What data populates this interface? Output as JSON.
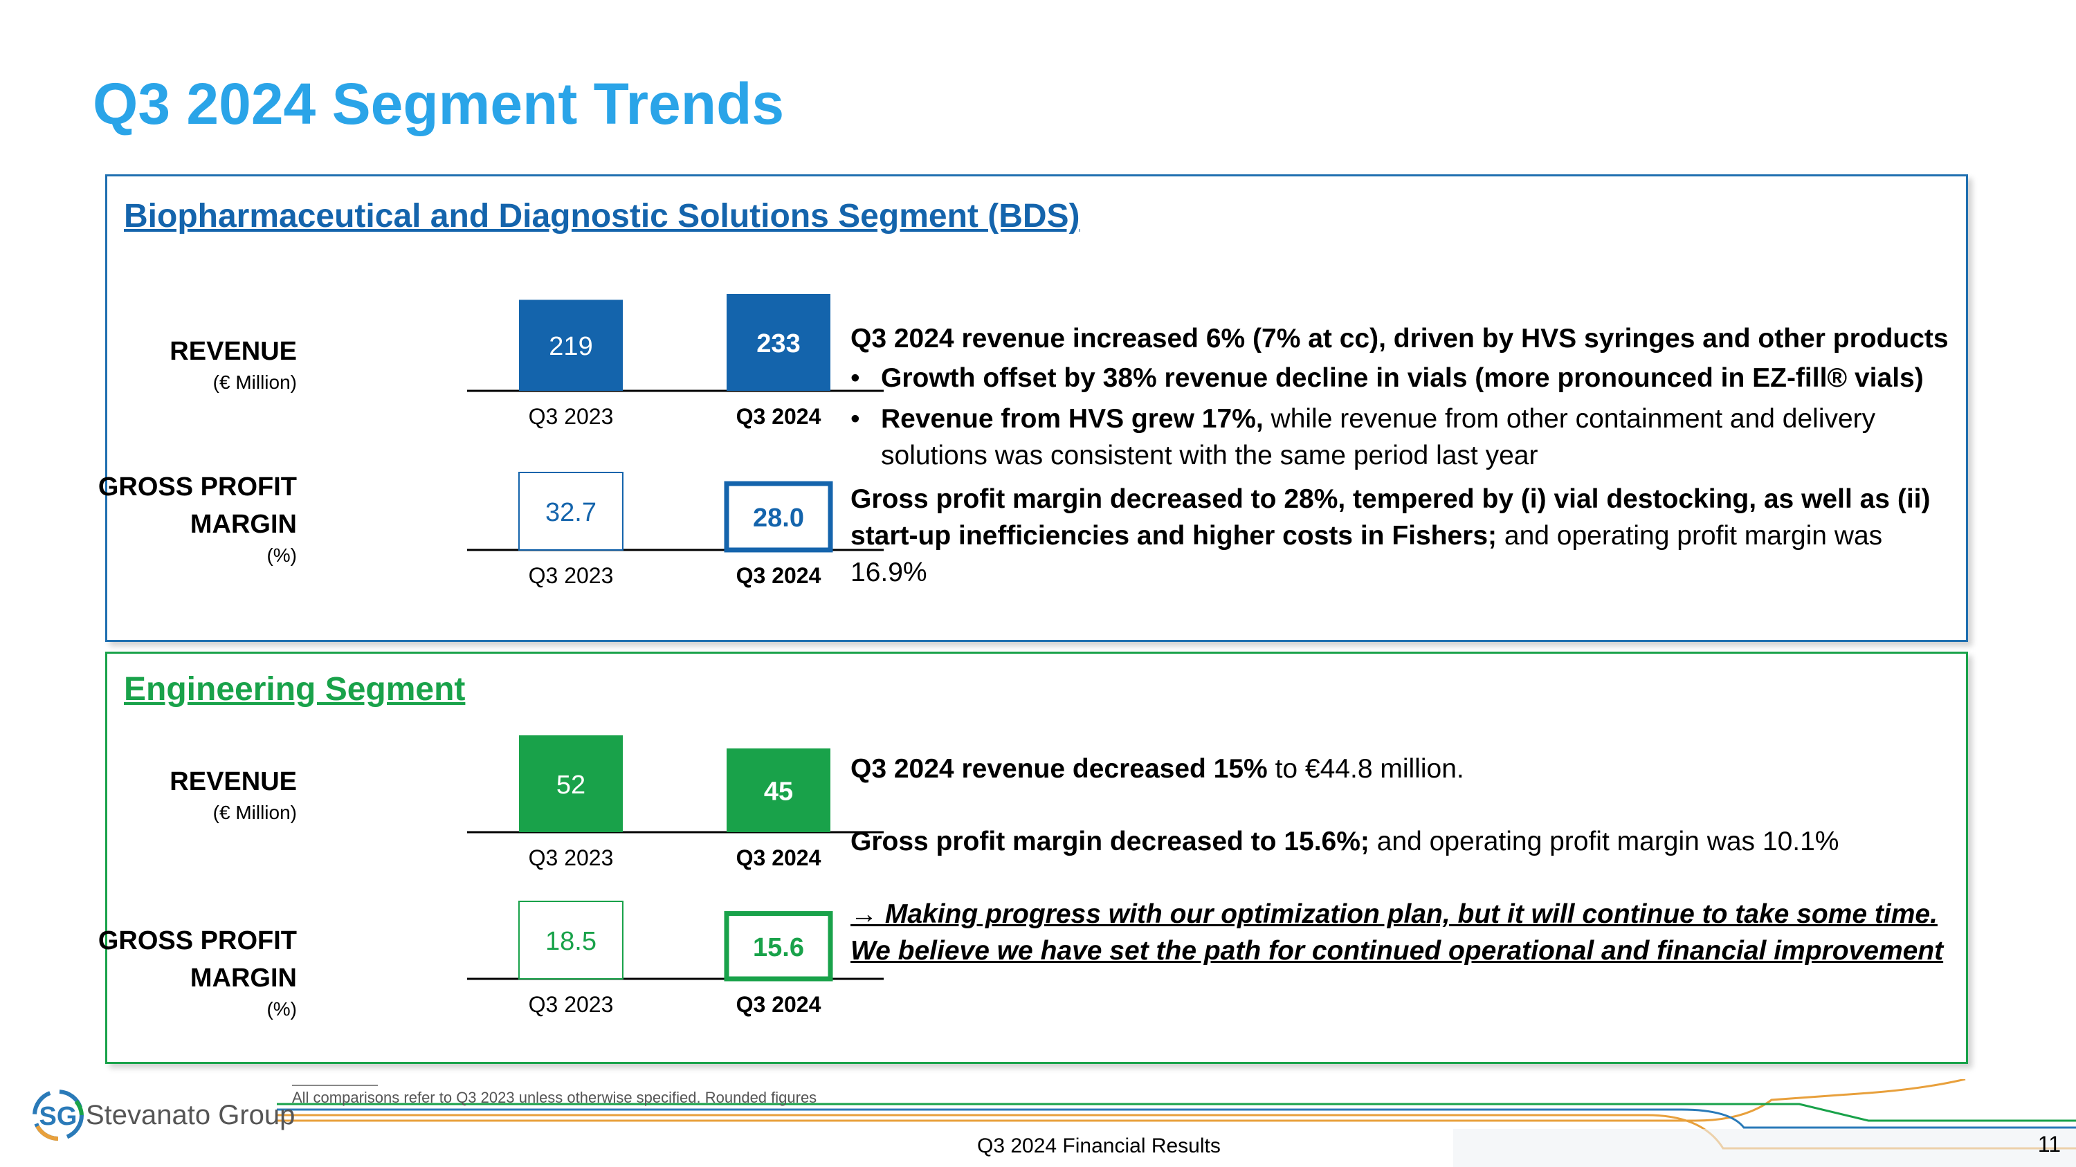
{
  "title": "Q3 2024 Segment Trends",
  "colors": {
    "title": "#2aa4e8",
    "bds": "#1464ac",
    "engineering": "#19a24a"
  },
  "bds": {
    "heading": "Biopharmaceutical and Diagnostic Solutions Segment (BDS)",
    "revenue_label": "REVENUE",
    "revenue_unit": "(€ Million)",
    "gpm_label_1": "GROSS PROFIT",
    "gpm_label_2": "MARGIN",
    "gpm_unit": "(%)",
    "notes": {
      "p1": "Q3 2024 revenue increased 6% (7% at cc), driven by HVS syringes and other products",
      "b1": "Growth offset by 38% revenue decline in vials (more pronounced in EZ-fill® vials)",
      "b2_bold": "Revenue from HVS grew 17%,",
      "b2_rest": " while revenue from other containment and delivery solutions was consistent with the same period last year",
      "p2_bold": "Gross profit margin decreased to 28%, tempered by (i) vial destocking, as well as  (ii) start-up inefficiencies and higher costs in Fishers;",
      "p2_rest": " and operating profit margin was 16.9%"
    }
  },
  "engineering": {
    "heading": "Engineering Segment",
    "revenue_label": "REVENUE",
    "revenue_unit": "(€ Million)",
    "gpm_label_1": "GROSS PROFIT",
    "gpm_label_2": "MARGIN",
    "gpm_unit": "(%)",
    "notes": {
      "p1_bold": "Q3 2024 revenue decreased 15%",
      "p1_rest": " to €44.8 million.",
      "p2_bold": "Gross profit margin decreased to 15.6%;",
      "p2_rest": " and operating profit margin was 10.1%",
      "p3_arrow": "→",
      "p3": " Making progress with our optimization plan, but it will continue to take some time. We believe we have set the path for continued operational and financial improvement"
    }
  },
  "footnote": "All comparisons refer to Q3 2023 unless otherwise specified. Rounded figures",
  "logo": {
    "mark": "SG",
    "name": "Stevanato Group"
  },
  "footer_text": "Q3 2024 Financial Results",
  "page_number": "11",
  "chart_data": [
    {
      "type": "bar",
      "segment": "BDS",
      "metric": "REVENUE (€ Million)",
      "categories": [
        "Q3 2023",
        "Q3 2024"
      ],
      "values": [
        219,
        233
      ],
      "labels": [
        "219",
        "233"
      ],
      "style": "filled",
      "color": "#1464ac",
      "ylim": [
        0,
        233
      ]
    },
    {
      "type": "bar",
      "segment": "BDS",
      "metric": "GROSS PROFIT MARGIN (%)",
      "categories": [
        "Q3 2023",
        "Q3 2024"
      ],
      "values": [
        32.7,
        28.0
      ],
      "labels": [
        "32.7",
        "28.0"
      ],
      "style": "outline",
      "color": "#1464ac",
      "ylim": [
        0,
        32.7
      ]
    },
    {
      "type": "bar",
      "segment": "Engineering",
      "metric": "REVENUE (€ Million)",
      "categories": [
        "Q3 2023",
        "Q3 2024"
      ],
      "values": [
        52,
        45
      ],
      "labels": [
        "52",
        "45"
      ],
      "style": "filled",
      "color": "#19a24a",
      "ylim": [
        0,
        52
      ]
    },
    {
      "type": "bar",
      "segment": "Engineering",
      "metric": "GROSS PROFIT MARGIN (%)",
      "categories": [
        "Q3 2023",
        "Q3 2024"
      ],
      "values": [
        18.5,
        15.6
      ],
      "labels": [
        "18.5",
        "15.6"
      ],
      "style": "outline",
      "color": "#19a24a",
      "ylim": [
        0,
        18.5
      ]
    }
  ]
}
